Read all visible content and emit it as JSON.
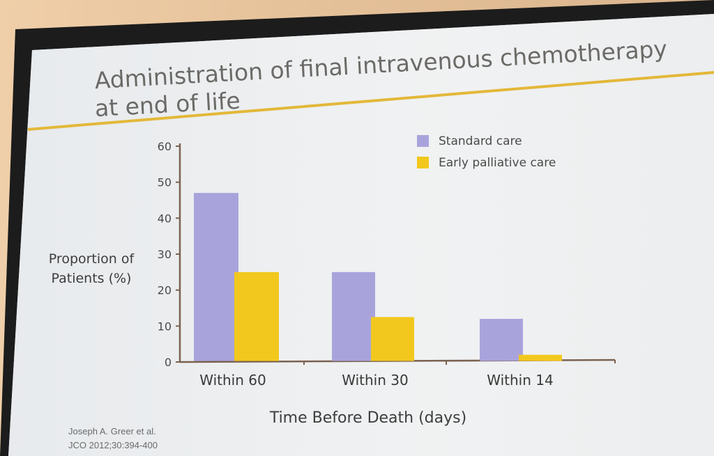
{
  "slide": {
    "title_line1": "Administration of final intravenous chemotherapy",
    "title_line2": "at end of life",
    "citation_line1": "Joseph A. Greer et al.",
    "citation_line2": "JCO 2012;30:394-400"
  },
  "colors": {
    "standard_care": "#a9a3dc",
    "early_palliative_care": "#f2c81e",
    "accent_line": "#e3b83a",
    "axis": "#7a6250"
  },
  "chart_data": {
    "type": "bar",
    "categories": [
      "Within 60",
      "Within 30",
      "Within 14"
    ],
    "series": [
      {
        "name": "Standard care",
        "values": [
          47,
          25,
          12
        ]
      },
      {
        "name": "Early palliative care",
        "values": [
          25,
          12.5,
          2
        ]
      }
    ],
    "ylabel_line1": "Proportion of",
    "ylabel_line2": "Patients (%)",
    "xlabel": "Time Before Death (days)",
    "ylim": [
      0,
      60
    ],
    "yticks": [
      0,
      10,
      20,
      30,
      40,
      50,
      60
    ],
    "legend_position": "top-right",
    "grid": false
  }
}
